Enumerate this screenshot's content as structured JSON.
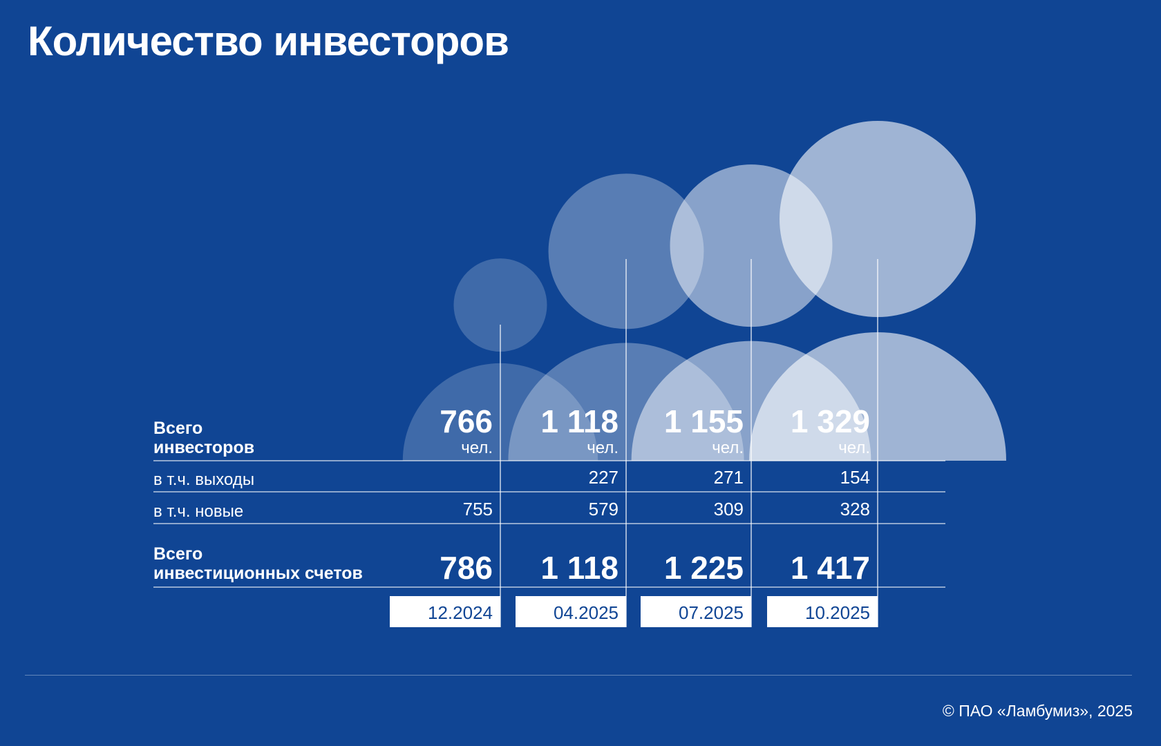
{
  "title": "Количество инвесторов",
  "copyright": "© ПАО «Ламбумиз», 2025",
  "colors": {
    "background": "#104594",
    "bubble": "#ffffff",
    "text": "#ffffff",
    "period_text": "#104594"
  },
  "chart_data": {
    "type": "table",
    "periods": [
      "12.2024",
      "04.2025",
      "07.2025",
      "10.2025"
    ],
    "unit": "чел.",
    "rows": [
      {
        "label_line1": "Всего",
        "label_line2": "инвесторов",
        "bold": true,
        "values": [
          "766",
          "1 118",
          "1 155",
          "1 329"
        ],
        "numeric": [
          766,
          1118,
          1155,
          1329
        ]
      },
      {
        "label_line1": "в т.ч. выходы",
        "label_line2": "",
        "bold": false,
        "values": [
          "",
          "227",
          "271",
          "154"
        ],
        "numeric": [
          null,
          227,
          271,
          154
        ]
      },
      {
        "label_line1": "в т.ч. новые",
        "label_line2": "",
        "bold": false,
        "values": [
          "755",
          "579",
          "309",
          "328"
        ],
        "numeric": [
          755,
          579,
          309,
          328
        ]
      },
      {
        "label_line1": "Всего",
        "label_line2": "инвестиционных счетов",
        "bold": true,
        "values": [
          "786",
          "1 118",
          "1 225",
          "1 417"
        ],
        "numeric": [
          786,
          1118,
          1225,
          1417
        ]
      }
    ]
  }
}
